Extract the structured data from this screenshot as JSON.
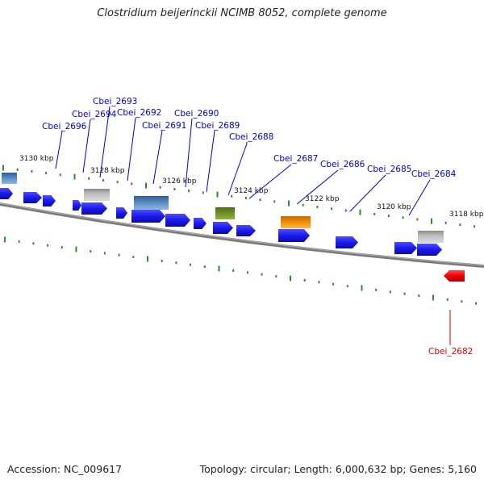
{
  "title": "Clostridium beijerinckii NCIMB 8052, complete genome",
  "accession": "Accession: NC_009617",
  "summary": "Topology: circular; Length: 6,000,632 bp; Genes: 5,160",
  "kbp_labels": [
    {
      "text": "3130 kbp"
    },
    {
      "text": "3128 kbp"
    },
    {
      "text": "3126 kbp"
    },
    {
      "text": "3124 kbp"
    },
    {
      "text": "3122 kbp"
    },
    {
      "text": "3120 kbp"
    },
    {
      "text": "3118 kbp"
    }
  ],
  "gene_labels": [
    {
      "text": "Cbei_2696",
      "color": "#0000cc"
    },
    {
      "text": "Cbei_2694",
      "color": "#0000cc"
    },
    {
      "text": "Cbei_2693",
      "color": "#0000cc"
    },
    {
      "text": "Cbei_2692",
      "color": "#0000cc"
    },
    {
      "text": "Cbei_2691",
      "color": "#0000cc"
    },
    {
      "text": "Cbei_2690",
      "color": "#0000cc"
    },
    {
      "text": "Cbei_2689",
      "color": "#0000cc"
    },
    {
      "text": "Cbei_2688",
      "color": "#0000cc"
    },
    {
      "text": "Cbei_2687",
      "color": "#0000cc"
    },
    {
      "text": "Cbei_2686",
      "color": "#0000cc"
    },
    {
      "text": "Cbei_2685",
      "color": "#0000cc"
    },
    {
      "text": "Cbei_2684",
      "color": "#0000cc"
    },
    {
      "text": "Cbei_2682",
      "color": "#dd0000"
    }
  ],
  "colors": {
    "cds": "#1a1aee",
    "rrna_blue": "#4a7fb8",
    "pseudo_gray": "#b4b4b4",
    "trna_green": "#6b8e23",
    "orange": "#f08c00",
    "red": "#ee0000",
    "backbone": "#777777",
    "tick": "#2e8b2e"
  }
}
